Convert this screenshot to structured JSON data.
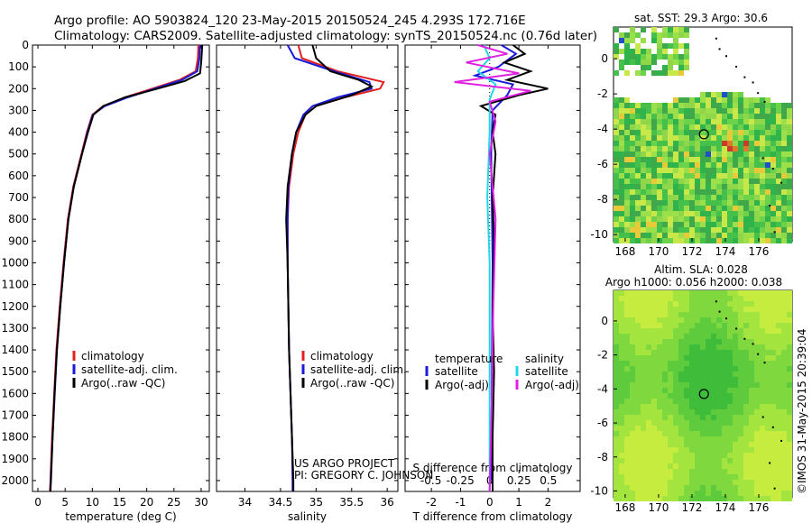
{
  "header": {
    "line1": "Argo profile: AO 5903824_120 23-May-2015 20150524_245 4.293S 172.716E",
    "line2": "Climatology: CARS2009. Satellite-adjusted climatology: synTS_20150524.nc (0.76d later)"
  },
  "credits": {
    "project": "US ARGO PROJECT",
    "pi": "PI: GREGORY C. JOHNSON",
    "stamp": "©IMOS 31-May-2015 20:39:04"
  },
  "colors": {
    "climatology": "#e02020",
    "satellite": "#1a1adc",
    "argo": "#000000",
    "sat_salinity": "#22d8e8",
    "argo_salinity_adj": "#e020e0"
  },
  "chart_data": [
    {
      "type": "line",
      "id": "temperature",
      "xlabel": "temperature (deg C)",
      "xlim": [
        -1,
        31.5
      ],
      "ylim": [
        2050,
        0
      ],
      "xticks": [
        0,
        5,
        10,
        15,
        20,
        25,
        30
      ],
      "yticks": [
        0,
        100,
        200,
        300,
        400,
        500,
        600,
        700,
        800,
        900,
        1000,
        1100,
        1200,
        1300,
        1400,
        1500,
        1600,
        1700,
        1800,
        1900,
        2000
      ],
      "legend": [
        "climatology",
        "satellite-adj. clim.",
        "Argo(..raw -QC)"
      ],
      "series": [
        {
          "name": "climatology",
          "color": "#e02020",
          "points": [
            [
              29.5,
              0
            ],
            [
              29.4,
              60
            ],
            [
              29.0,
              120
            ],
            [
              26.0,
              160
            ],
            [
              21.0,
              200
            ],
            [
              16.0,
              240
            ],
            [
              12.0,
              280
            ],
            [
              10.0,
              320
            ],
            [
              9.0,
              400
            ],
            [
              8.0,
              500
            ],
            [
              6.5,
              650
            ],
            [
              5.5,
              800
            ],
            [
              4.7,
              1000
            ],
            [
              4.0,
              1200
            ],
            [
              3.4,
              1400
            ],
            [
              3.0,
              1600
            ],
            [
              2.6,
              1800
            ],
            [
              2.3,
              2000
            ],
            [
              2.2,
              2050
            ]
          ]
        },
        {
          "name": "satellite-adj. clim.",
          "color": "#1a1adc",
          "points": [
            [
              29.8,
              0
            ],
            [
              29.7,
              60
            ],
            [
              29.3,
              120
            ],
            [
              26.5,
              160
            ],
            [
              21.5,
              200
            ],
            [
              16.5,
              240
            ],
            [
              12.3,
              280
            ],
            [
              10.1,
              320
            ],
            [
              9.1,
              400
            ],
            [
              8.1,
              500
            ],
            [
              6.6,
              650
            ],
            [
              5.6,
              800
            ],
            [
              4.8,
              1000
            ],
            [
              4.1,
              1200
            ],
            [
              3.5,
              1400
            ],
            [
              3.1,
              1600
            ],
            [
              2.7,
              1800
            ],
            [
              2.35,
              2000
            ],
            [
              2.25,
              2050
            ]
          ]
        },
        {
          "name": "Argo(..raw -QC)",
          "color": "#000000",
          "points": [
            [
              30.2,
              0
            ],
            [
              30.0,
              80
            ],
            [
              29.8,
              130
            ],
            [
              27.0,
              165
            ],
            [
              22.0,
              200
            ],
            [
              16.0,
              240
            ],
            [
              12.0,
              280
            ],
            [
              10.2,
              320
            ],
            [
              9.2,
              400
            ],
            [
              8.1,
              500
            ],
            [
              6.6,
              650
            ],
            [
              5.6,
              800
            ],
            [
              4.8,
              1000
            ],
            [
              4.1,
              1200
            ],
            [
              3.5,
              1400
            ],
            [
              3.05,
              1600
            ],
            [
              2.7,
              1800
            ],
            [
              2.4,
              2000
            ],
            [
              2.3,
              2050
            ]
          ]
        }
      ]
    },
    {
      "type": "line",
      "id": "salinity",
      "xlabel": "salinity",
      "xlim": [
        33.6,
        36.15
      ],
      "ylim": [
        2050,
        0
      ],
      "xticks": [
        34,
        34.5,
        35,
        35.5,
        36
      ],
      "legend": [
        "climatology",
        "satellite-adj. clim.",
        "Argo(..raw -QC)"
      ],
      "series": [
        {
          "name": "climatology",
          "color": "#e02020",
          "points": [
            [
              34.75,
              0
            ],
            [
              34.8,
              60
            ],
            [
              35.3,
              120
            ],
            [
              35.95,
              170
            ],
            [
              35.9,
              200
            ],
            [
              35.4,
              240
            ],
            [
              35.0,
              280
            ],
            [
              34.85,
              320
            ],
            [
              34.75,
              400
            ],
            [
              34.68,
              500
            ],
            [
              34.62,
              650
            ],
            [
              34.6,
              800
            ],
            [
              34.6,
              1000
            ],
            [
              34.61,
              1200
            ],
            [
              34.62,
              1400
            ],
            [
              34.64,
              1600
            ],
            [
              34.66,
              1800
            ],
            [
              34.68,
              2000
            ],
            [
              34.68,
              2050
            ]
          ]
        },
        {
          "name": "satellite-adj. clim.",
          "color": "#1a1adc",
          "points": [
            [
              34.6,
              0
            ],
            [
              34.7,
              60
            ],
            [
              35.25,
              120
            ],
            [
              35.75,
              170
            ],
            [
              35.78,
              200
            ],
            [
              35.3,
              240
            ],
            [
              34.95,
              280
            ],
            [
              34.82,
              320
            ],
            [
              34.72,
              400
            ],
            [
              34.66,
              500
            ],
            [
              34.61,
              650
            ],
            [
              34.6,
              800
            ],
            [
              34.6,
              1000
            ],
            [
              34.61,
              1200
            ],
            [
              34.62,
              1400
            ],
            [
              34.64,
              1600
            ],
            [
              34.66,
              1800
            ],
            [
              34.67,
              2000
            ],
            [
              34.67,
              2050
            ]
          ]
        },
        {
          "name": "Argo(..raw -QC)",
          "color": "#000000",
          "points": [
            [
              34.95,
              0
            ],
            [
              35.0,
              60
            ],
            [
              35.2,
              120
            ],
            [
              35.6,
              160
            ],
            [
              35.78,
              190
            ],
            [
              35.5,
              230
            ],
            [
              35.0,
              280
            ],
            [
              34.85,
              320
            ],
            [
              34.72,
              400
            ],
            [
              34.66,
              500
            ],
            [
              34.6,
              650
            ],
            [
              34.58,
              800
            ],
            [
              34.6,
              1000
            ],
            [
              34.61,
              1200
            ],
            [
              34.62,
              1400
            ],
            [
              34.64,
              1600
            ],
            [
              34.66,
              1800
            ],
            [
              34.68,
              2000
            ],
            [
              34.68,
              2050
            ]
          ]
        }
      ]
    },
    {
      "type": "line",
      "id": "difference",
      "xlabel": "T difference from climatology",
      "x2label": "S difference from climatology",
      "xlim": [
        -2.9,
        3.1
      ],
      "x2lim": [
        -0.72,
        0.77
      ],
      "ylim": [
        2050,
        0
      ],
      "xticks": [
        -2,
        -1,
        0,
        1,
        2
      ],
      "x2ticks": [
        -0.5,
        -0.25,
        0,
        0.25,
        0.5
      ],
      "legend_temperature": {
        "title": "temperature",
        "items": [
          "satellite",
          "Argo(-adj)"
        ]
      },
      "legend_salinity": {
        "title": "salinity",
        "items": [
          "satellite",
          "Argo(-adj)"
        ]
      },
      "series": [
        {
          "name": "temperature satellite",
          "color": "#1a1adc",
          "points": [
            [
              0.4,
              0
            ],
            [
              0.9,
              40
            ],
            [
              0.3,
              100
            ],
            [
              -0.5,
              140
            ],
            [
              0.8,
              180
            ],
            [
              0.6,
              230
            ],
            [
              0.1,
              300
            ],
            [
              0.05,
              500
            ],
            [
              0.1,
              1000
            ],
            [
              0.05,
              2000
            ]
          ]
        },
        {
          "name": "temperature Argo(-adj)",
          "color": "#000000",
          "points": [
            [
              0.8,
              0
            ],
            [
              1.2,
              40
            ],
            [
              0.5,
              80
            ],
            [
              1.4,
              120
            ],
            [
              0.6,
              160
            ],
            [
              2.0,
              200
            ],
            [
              1.0,
              230
            ],
            [
              -0.3,
              280
            ],
            [
              0.2,
              320
            ],
            [
              0.1,
              400
            ],
            [
              0.2,
              500
            ],
            [
              0.1,
              700
            ],
            [
              0.15,
              900
            ],
            [
              0.1,
              1200
            ],
            [
              0.15,
              1500
            ],
            [
              0.1,
              1800
            ],
            [
              0.1,
              2050
            ]
          ]
        },
        {
          "name": "salinity satellite",
          "color": "#22d8e8",
          "points": [
            [
              -0.05,
              0
            ],
            [
              0.0,
              60
            ],
            [
              -0.1,
              120
            ],
            [
              0.05,
              180
            ],
            [
              0.0,
              250
            ],
            [
              0.0,
              400
            ],
            [
              -0.02,
              700
            ],
            [
              0.0,
              1000
            ],
            [
              0.0,
              2050
            ]
          ]
        },
        {
          "name": "salinity Argo(-adj)",
          "color": "#e020e0",
          "points": [
            [
              -0.1,
              0
            ],
            [
              0.15,
              40
            ],
            [
              -0.2,
              80
            ],
            [
              0.25,
              130
            ],
            [
              -0.3,
              170
            ],
            [
              0.35,
              210
            ],
            [
              0.0,
              260
            ],
            [
              0.05,
              350
            ],
            [
              0.0,
              500
            ],
            [
              0.05,
              800
            ],
            [
              0.03,
              1200
            ],
            [
              0.02,
              1600
            ],
            [
              0.0,
              2050
            ]
          ]
        }
      ]
    },
    {
      "type": "heatmap",
      "id": "sst-map",
      "title": "sat. SST: 29.3 Argo: 30.6",
      "xlim": [
        167.3,
        178
      ],
      "ylim": [
        -10.4,
        1.8
      ],
      "xticks": [
        168,
        170,
        172,
        174,
        176
      ],
      "yticks": [
        0,
        -2,
        -4,
        -6,
        -8,
        -10
      ],
      "argo_position": [
        172.716,
        -4.293
      ]
    },
    {
      "type": "heatmap",
      "id": "sla-map",
      "title": "Altim. SLA: 0.028",
      "subtitle": "Argo h1000: 0.056 h2000: 0.038",
      "xlim": [
        167.3,
        178
      ],
      "ylim": [
        -10.4,
        1.8
      ],
      "xticks": [
        168,
        170,
        172,
        174,
        176
      ],
      "yticks": [
        0,
        -2,
        -4,
        -6,
        -8,
        -10
      ],
      "argo_position": [
        172.716,
        -4.293
      ]
    }
  ]
}
